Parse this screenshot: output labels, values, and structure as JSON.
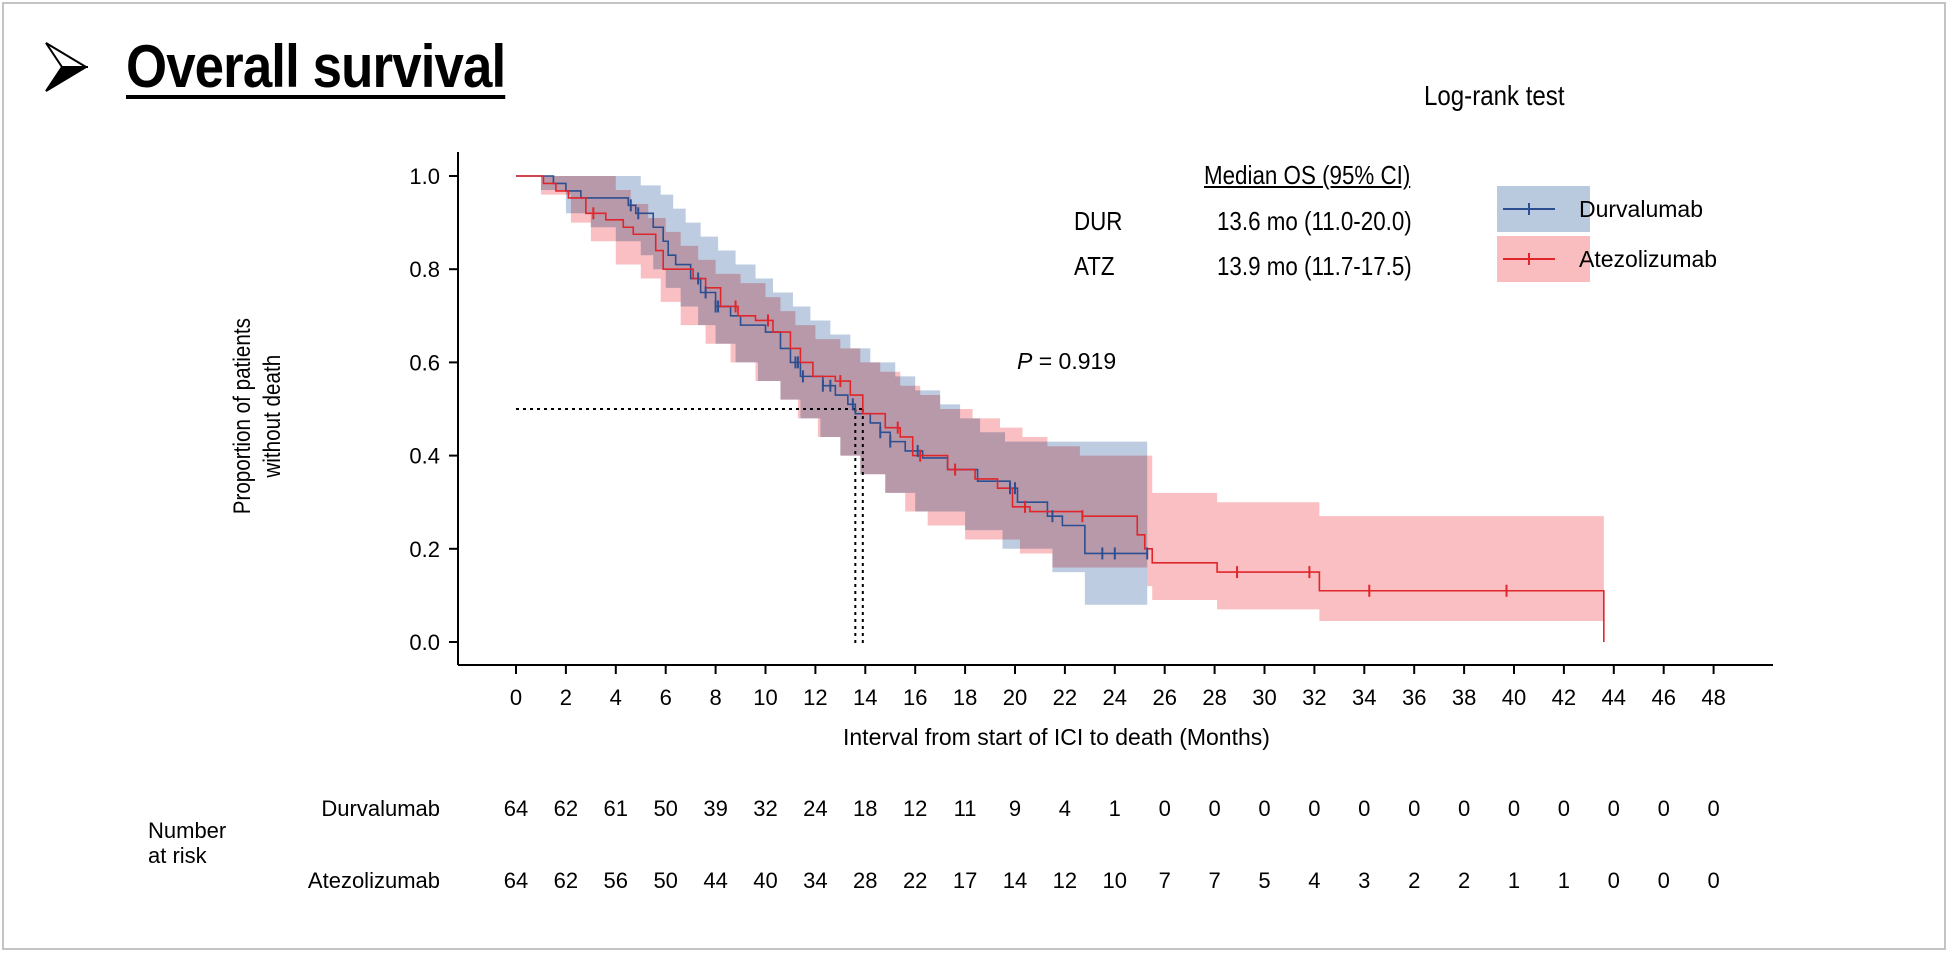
{
  "page": {
    "title": "Overall survival",
    "bullet_icon": "arrowhead-bullet",
    "logrank_label": "Log-rank test"
  },
  "median_table": {
    "header": "Median OS (95% CI)",
    "rows": [
      {
        "abbr": "DUR",
        "value": "13.6 mo (11.0-20.0)"
      },
      {
        "abbr": "ATZ",
        "value": "13.9 mo (11.7-17.5)"
      }
    ]
  },
  "legend": [
    {
      "name": "Durvalumab",
      "line_color": "#2b4f91",
      "band_color": "#b9c9de"
    },
    {
      "name": "Atezolizumab",
      "line_color": "#e0262b",
      "band_color": "#f9bcbf"
    }
  ],
  "pvalue": {
    "symbol": "P",
    "text": "= 0.919"
  },
  "risk_table": {
    "title_line1": "Number",
    "title_line2": "at risk",
    "times": [
      0,
      2,
      4,
      6,
      8,
      10,
      12,
      14,
      16,
      18,
      20,
      22,
      24,
      26,
      28,
      30,
      32,
      34,
      36,
      38,
      40,
      42,
      44,
      46,
      48
    ],
    "rows": [
      {
        "name": "Durvalumab",
        "values": [
          64,
          62,
          61,
          50,
          39,
          32,
          24,
          18,
          12,
          11,
          9,
          4,
          1,
          0,
          0,
          0,
          0,
          0,
          0,
          0,
          0,
          0,
          0,
          0,
          0
        ]
      },
      {
        "name": "Atezolizumab",
        "values": [
          64,
          62,
          56,
          50,
          44,
          40,
          34,
          28,
          22,
          17,
          14,
          12,
          10,
          7,
          7,
          5,
          4,
          3,
          2,
          2,
          1,
          1,
          0,
          0,
          0
        ]
      }
    ]
  },
  "chart_data": {
    "type": "line",
    "subtype": "kaplan-meier step",
    "title": "Overall survival",
    "xlabel": "Interval from start of ICI to death (Months)",
    "ylabel_line1": "Proportion of patients",
    "ylabel_line2": "without death",
    "xlim": [
      0,
      48
    ],
    "ylim": [
      0,
      1.0
    ],
    "xticks": [
      0,
      2,
      4,
      6,
      8,
      10,
      12,
      14,
      16,
      18,
      20,
      22,
      24,
      26,
      28,
      30,
      32,
      34,
      36,
      38,
      40,
      42,
      44,
      46,
      48
    ],
    "yticks": [
      "0.0",
      "0.2",
      "0.4",
      "0.6",
      "0.8",
      "1.0"
    ],
    "ytick_values": [
      0,
      0.2,
      0.4,
      0.6,
      0.8,
      1.0
    ],
    "grid": false,
    "legend_position": "top-right",
    "median_reference": {
      "y": 0.5,
      "x_values": [
        13.6,
        13.9
      ]
    },
    "series": [
      {
        "name": "Durvalumab",
        "color": "#2b4f91",
        "band_color": "#b9c9de",
        "steps": [
          [
            0,
            1.0
          ],
          [
            1.5,
            0.984
          ],
          [
            2.0,
            0.968
          ],
          [
            2.6,
            0.953
          ],
          [
            4.5,
            0.937
          ],
          [
            4.8,
            0.92
          ],
          [
            5.5,
            0.89
          ],
          [
            5.9,
            0.86
          ],
          [
            6.1,
            0.83
          ],
          [
            6.4,
            0.81
          ],
          [
            7.0,
            0.78
          ],
          [
            7.4,
            0.75
          ],
          [
            8.0,
            0.72
          ],
          [
            8.6,
            0.7
          ],
          [
            9.0,
            0.68
          ],
          [
            10.0,
            0.665
          ],
          [
            10.6,
            0.63
          ],
          [
            11.0,
            0.6
          ],
          [
            11.4,
            0.57
          ],
          [
            12.3,
            0.55
          ],
          [
            12.8,
            0.53
          ],
          [
            13.3,
            0.51
          ],
          [
            13.6,
            0.49
          ],
          [
            14.2,
            0.47
          ],
          [
            14.6,
            0.45
          ],
          [
            15.0,
            0.43
          ],
          [
            15.6,
            0.41
          ],
          [
            16.3,
            0.395
          ],
          [
            17.3,
            0.37
          ],
          [
            18.5,
            0.345
          ],
          [
            19.8,
            0.33
          ],
          [
            20.1,
            0.3
          ],
          [
            21.3,
            0.27
          ],
          [
            21.9,
            0.25
          ],
          [
            22.8,
            0.19
          ],
          [
            25.3,
            0.19
          ]
        ],
        "censor": [
          4.6,
          4.9,
          7.3,
          7.6,
          8.0,
          8.1,
          11.2,
          11.3,
          11.5,
          12.3,
          12.6,
          13.5,
          14.6,
          15.0,
          16.1,
          19.8,
          20.0,
          21.5,
          23.5,
          24.0,
          25.3
        ],
        "ci_upper": [
          [
            0,
            1.0
          ],
          [
            4.0,
            1.0
          ],
          [
            5.0,
            0.98
          ],
          [
            5.8,
            0.96
          ],
          [
            6.3,
            0.93
          ],
          [
            6.8,
            0.9
          ],
          [
            7.4,
            0.87
          ],
          [
            8.1,
            0.84
          ],
          [
            8.8,
            0.81
          ],
          [
            9.6,
            0.78
          ],
          [
            10.3,
            0.75
          ],
          [
            11.1,
            0.72
          ],
          [
            11.8,
            0.69
          ],
          [
            12.6,
            0.66
          ],
          [
            13.4,
            0.63
          ],
          [
            14.2,
            0.6
          ],
          [
            15.2,
            0.57
          ],
          [
            16.0,
            0.54
          ],
          [
            17.0,
            0.51
          ],
          [
            17.8,
            0.48
          ],
          [
            18.6,
            0.45
          ],
          [
            19.6,
            0.43
          ],
          [
            25.3,
            0.43
          ]
        ],
        "ci_lower": [
          [
            0,
            1.0
          ],
          [
            1.0,
            0.97
          ],
          [
            2.0,
            0.92
          ],
          [
            3.0,
            0.89
          ],
          [
            4.0,
            0.86
          ],
          [
            5.0,
            0.83
          ],
          [
            5.5,
            0.8
          ],
          [
            6.0,
            0.76
          ],
          [
            6.6,
            0.72
          ],
          [
            7.3,
            0.68
          ],
          [
            8.0,
            0.64
          ],
          [
            8.8,
            0.6
          ],
          [
            9.7,
            0.56
          ],
          [
            10.6,
            0.52
          ],
          [
            11.4,
            0.48
          ],
          [
            12.2,
            0.44
          ],
          [
            13.0,
            0.4
          ],
          [
            13.8,
            0.36
          ],
          [
            14.8,
            0.32
          ],
          [
            16.0,
            0.28
          ],
          [
            18.0,
            0.24
          ],
          [
            19.5,
            0.2
          ],
          [
            21.5,
            0.15
          ],
          [
            22.8,
            0.08
          ],
          [
            25.3,
            0.08
          ]
        ]
      },
      {
        "name": "Atezolizumab",
        "color": "#e0262b",
        "band_color": "#f9bcbf",
        "steps": [
          [
            0,
            1.0
          ],
          [
            1.1,
            0.984
          ],
          [
            1.6,
            0.968
          ],
          [
            2.1,
            0.953
          ],
          [
            2.8,
            0.92
          ],
          [
            3.6,
            0.906
          ],
          [
            4.3,
            0.89
          ],
          [
            4.7,
            0.875
          ],
          [
            5.6,
            0.84
          ],
          [
            5.9,
            0.8
          ],
          [
            7.1,
            0.78
          ],
          [
            7.6,
            0.76
          ],
          [
            8.2,
            0.72
          ],
          [
            8.9,
            0.7
          ],
          [
            9.6,
            0.69
          ],
          [
            10.3,
            0.665
          ],
          [
            11.0,
            0.63
          ],
          [
            11.4,
            0.6
          ],
          [
            11.9,
            0.57
          ],
          [
            12.8,
            0.56
          ],
          [
            13.4,
            0.53
          ],
          [
            13.9,
            0.49
          ],
          [
            14.8,
            0.46
          ],
          [
            15.4,
            0.44
          ],
          [
            15.9,
            0.4
          ],
          [
            17.3,
            0.37
          ],
          [
            18.4,
            0.35
          ],
          [
            19.3,
            0.33
          ],
          [
            19.9,
            0.29
          ],
          [
            20.6,
            0.28
          ],
          [
            22.7,
            0.27
          ],
          [
            24.9,
            0.23
          ],
          [
            25.2,
            0.2
          ],
          [
            25.5,
            0.17
          ],
          [
            28.1,
            0.15
          ],
          [
            32.2,
            0.11
          ],
          [
            43.6,
            0.11
          ],
          [
            43.6,
            0.0
          ]
        ],
        "censor": [
          3.1,
          8.8,
          10.1,
          13.0,
          15.3,
          16.2,
          17.6,
          20.4,
          22.7,
          28.9,
          31.8,
          34.2,
          39.7
        ],
        "ci_upper": [
          [
            0,
            1.0
          ],
          [
            3.0,
            1.0
          ],
          [
            4.0,
            0.97
          ],
          [
            4.6,
            0.94
          ],
          [
            5.3,
            0.91
          ],
          [
            6.0,
            0.88
          ],
          [
            6.6,
            0.85
          ],
          [
            7.3,
            0.82
          ],
          [
            8.0,
            0.79
          ],
          [
            9.0,
            0.77
          ],
          [
            10.0,
            0.74
          ],
          [
            10.6,
            0.71
          ],
          [
            11.2,
            0.68
          ],
          [
            12.0,
            0.65
          ],
          [
            13.0,
            0.63
          ],
          [
            13.8,
            0.6
          ],
          [
            14.6,
            0.58
          ],
          [
            15.4,
            0.55
          ],
          [
            16.2,
            0.53
          ],
          [
            17.0,
            0.5
          ],
          [
            18.3,
            0.48
          ],
          [
            19.4,
            0.46
          ],
          [
            20.3,
            0.44
          ],
          [
            21.3,
            0.42
          ],
          [
            22.6,
            0.4
          ],
          [
            25.3,
            0.4
          ],
          [
            25.5,
            0.32
          ],
          [
            28.1,
            0.3
          ],
          [
            32.2,
            0.27
          ],
          [
            43.6,
            0.27
          ]
        ],
        "ci_lower": [
          [
            0,
            1.0
          ],
          [
            1.0,
            0.96
          ],
          [
            2.2,
            0.9
          ],
          [
            3.0,
            0.86
          ],
          [
            4.0,
            0.81
          ],
          [
            5.0,
            0.78
          ],
          [
            5.8,
            0.73
          ],
          [
            6.6,
            0.68
          ],
          [
            7.6,
            0.64
          ],
          [
            8.6,
            0.6
          ],
          [
            9.6,
            0.56
          ],
          [
            10.6,
            0.52
          ],
          [
            11.3,
            0.48
          ],
          [
            12.1,
            0.44
          ],
          [
            13.0,
            0.4
          ],
          [
            13.8,
            0.36
          ],
          [
            14.8,
            0.32
          ],
          [
            15.6,
            0.28
          ],
          [
            16.5,
            0.25
          ],
          [
            18.0,
            0.22
          ],
          [
            20.2,
            0.19
          ],
          [
            21.5,
            0.16
          ],
          [
            25.3,
            0.12
          ],
          [
            25.5,
            0.09
          ],
          [
            28.1,
            0.07
          ],
          [
            32.2,
            0.045
          ],
          [
            43.6,
            0.045
          ]
        ]
      }
    ],
    "annotations": [
      "P = 0.919"
    ]
  }
}
